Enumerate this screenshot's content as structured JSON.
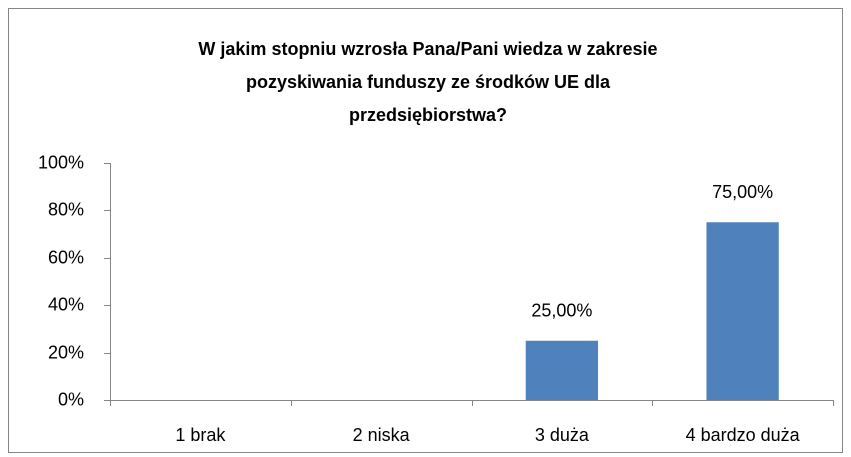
{
  "chart_data": {
    "type": "bar",
    "title": [
      "W jakim stopniu wzrosła Pana/Pani wiedza w zakresie",
      "pozyskiwania funduszy ze środków UE dla",
      "przedsiębiorstwa?"
    ],
    "categories": [
      "1 brak",
      "2 niska",
      "3 duża",
      "4 bardzo duża"
    ],
    "values": [
      0,
      0,
      25,
      75
    ],
    "value_labels": [
      null,
      null,
      "25,00%",
      "75,00%"
    ],
    "color": "#4f81bd",
    "ylim": [
      0,
      100
    ],
    "yticks": [
      {
        "value": 0,
        "label": "0%"
      },
      {
        "value": 20,
        "label": "20%"
      },
      {
        "value": 40,
        "label": "40%"
      },
      {
        "value": 60,
        "label": "60%"
      },
      {
        "value": 80,
        "label": "80%"
      },
      {
        "value": 100,
        "label": "100%"
      }
    ],
    "grid": false
  }
}
